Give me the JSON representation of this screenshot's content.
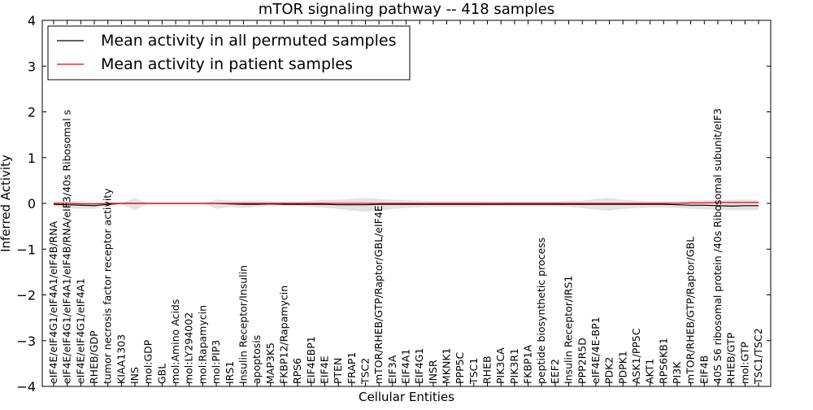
{
  "chart_data": {
    "type": "line",
    "title": "mTOR signaling pathway -- 418 samples",
    "xlabel": "Cellular Entities",
    "ylabel": "Inferred Activity",
    "ylim": [
      -4,
      4
    ],
    "yticks": [
      "4",
      "3",
      "2",
      "1",
      "0",
      "−1",
      "−2",
      "−3",
      "−4"
    ],
    "ytick_values": [
      4,
      3,
      2,
      1,
      0,
      -1,
      -2,
      -3,
      -4
    ],
    "grid": false,
    "legend_position": "top-left",
    "colors": {
      "permuted": "#000000",
      "patient": "#ff0000",
      "band": "#c0c0c0"
    },
    "categories": [
      "eIF4E/eIF4G1/eIF4A1/eIF4B/RNA",
      "eIF4E/eIF4G1/eIF4A1/eIF4B/RNA/eIF3/40s Ribosomal s",
      "eIF4E/eIF4G1/eIF4A1",
      "RHEB/GDP",
      "tumor necrosis factor receptor activity",
      "KIAA1303",
      "INS",
      "mol:GDP",
      "GBL",
      "mol:Amino Acids",
      "mol:LY294002",
      "mol:Rapamycin",
      "mol:PIP3",
      "IRS1",
      "Insulin Receptor/Insulin",
      "apoptosis",
      "MAP3K5",
      "FKBP12/Rapamycin",
      "RPS6",
      "EIF4EBP1",
      "EIF4E",
      "PTEN",
      "FRAP1",
      "TSC2",
      "mTOR/RHEB/GTP/Raptor/GBL/eIF4E",
      "EIF3A",
      "EIF4A1",
      "EIF4G1",
      "INSR",
      "MKNK1",
      "PPP5C",
      "TSC1",
      "RHEB",
      "PIK3CA",
      "PIK3R1",
      "FKBP1A",
      "peptide biosynthetic process",
      "EEF2",
      "Insulin Receptor/IRS1",
      "PPP2R5D",
      "eIF4E/4E-BP1",
      "PDK2",
      "PDPK1",
      "ASK1/PP5C",
      "AKT1",
      "RPS6KB1",
      "PI3K",
      "mTOR/RHEB/GTP/Raptor/GBL",
      "EIF4B",
      "40S S6 ribosomal protein /40s Ribosomal subunit/eIF3",
      "RHEB/GTP",
      "mol:GTP",
      "TSC1/TSC2"
    ],
    "series": [
      {
        "name": "Mean activity in all permuted samples",
        "values": [
          -0.02,
          -0.03,
          -0.04,
          -0.05,
          -0.02,
          0.0,
          0.0,
          0.0,
          0.0,
          0.0,
          0.0,
          0.0,
          0.0,
          -0.01,
          -0.02,
          -0.02,
          -0.01,
          -0.02,
          -0.02,
          -0.02,
          -0.02,
          -0.03,
          -0.03,
          -0.03,
          -0.02,
          -0.02,
          -0.02,
          -0.02,
          -0.02,
          -0.02,
          -0.02,
          -0.02,
          -0.02,
          -0.02,
          -0.02,
          -0.02,
          -0.02,
          -0.02,
          -0.02,
          -0.02,
          -0.02,
          -0.02,
          -0.02,
          -0.02,
          -0.02,
          -0.02,
          -0.03,
          -0.04,
          -0.04,
          -0.05,
          -0.06,
          -0.05,
          -0.05
        ]
      },
      {
        "name": "Mean activity in patient samples",
        "values": [
          0.0,
          0.0,
          -0.01,
          -0.01,
          0.0,
          0.0,
          0.0,
          0.0,
          0.0,
          0.0,
          0.0,
          0.0,
          0.0,
          0.0,
          0.0,
          0.0,
          0.0,
          0.0,
          0.0,
          0.0,
          0.0,
          0.0,
          0.0,
          0.0,
          0.0,
          0.0,
          0.0,
          0.0,
          0.0,
          0.0,
          0.0,
          0.0,
          0.0,
          0.0,
          0.0,
          0.0,
          0.0,
          0.0,
          0.0,
          0.0,
          0.0,
          0.0,
          0.0,
          0.0,
          0.0,
          0.0,
          0.0,
          0.01,
          0.01,
          0.02,
          0.02,
          0.02,
          0.02
        ]
      }
    ],
    "band": {
      "upper": [
        0.04,
        0.05,
        0.05,
        0.02,
        0.0,
        0.0,
        0.12,
        0.0,
        0.0,
        0.0,
        0.0,
        0.0,
        0.08,
        0.06,
        0.06,
        0.06,
        0.05,
        0.04,
        0.04,
        0.06,
        0.08,
        0.08,
        0.1,
        0.12,
        0.1,
        0.08,
        0.07,
        0.06,
        0.05,
        0.05,
        0.05,
        0.05,
        0.05,
        0.05,
        0.04,
        0.04,
        0.04,
        0.04,
        0.06,
        0.06,
        0.1,
        0.12,
        0.08,
        0.06,
        0.05,
        0.05,
        0.05,
        0.06,
        0.07,
        0.08,
        0.08,
        0.08,
        0.08
      ],
      "lower": [
        -0.06,
        -0.1,
        -0.12,
        -0.12,
        -0.05,
        -0.01,
        -0.15,
        0.0,
        0.0,
        0.0,
        0.0,
        0.0,
        -0.12,
        -0.08,
        -0.1,
        -0.08,
        -0.06,
        -0.06,
        -0.06,
        -0.08,
        -0.1,
        -0.12,
        -0.16,
        -0.18,
        -0.16,
        -0.12,
        -0.1,
        -0.09,
        -0.08,
        -0.08,
        -0.08,
        -0.08,
        -0.07,
        -0.07,
        -0.07,
        -0.07,
        -0.07,
        -0.07,
        -0.08,
        -0.1,
        -0.14,
        -0.16,
        -0.12,
        -0.1,
        -0.09,
        -0.09,
        -0.1,
        -0.12,
        -0.13,
        -0.14,
        -0.15,
        -0.15,
        -0.15
      ]
    }
  }
}
